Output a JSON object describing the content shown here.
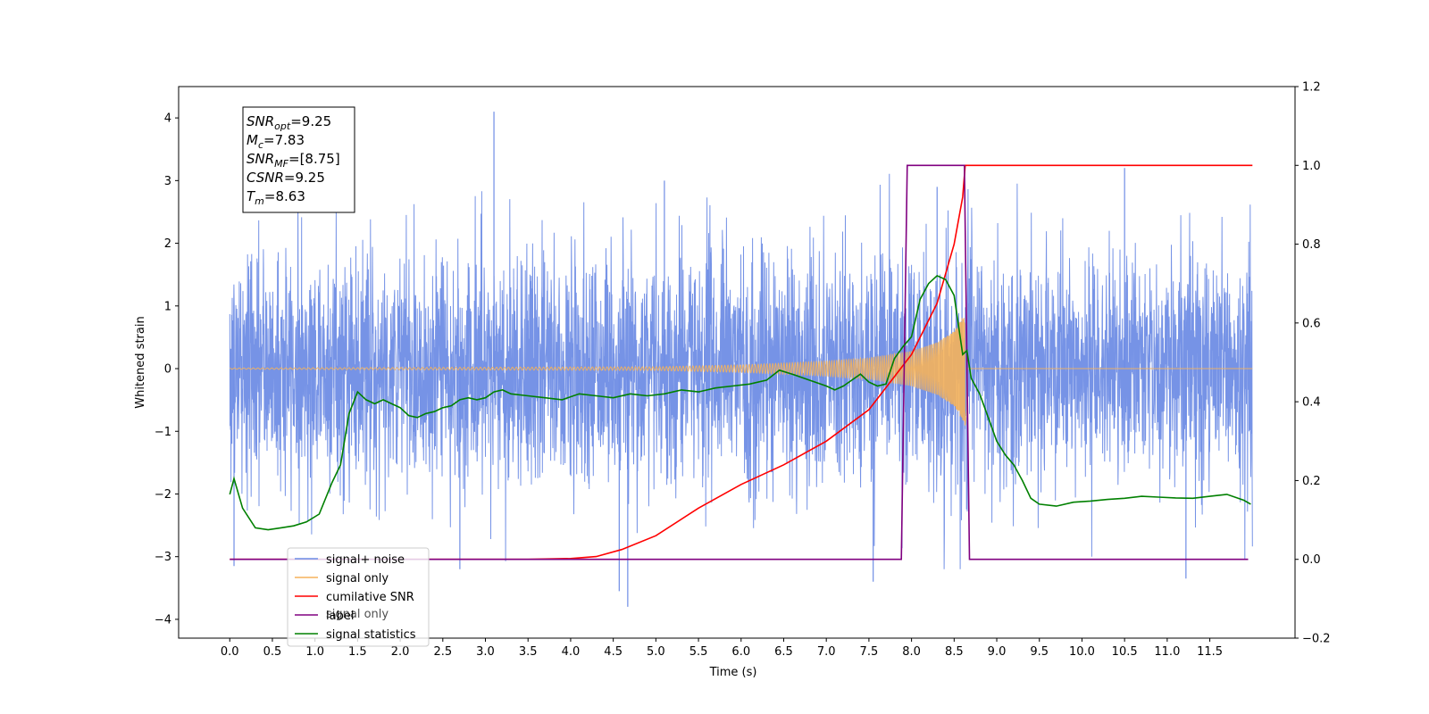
{
  "chart_data": {
    "type": "line",
    "title": "",
    "xlabel": "Time (s)",
    "ylabel": "Whitened strain",
    "xlim": [
      -0.6,
      12.5
    ],
    "ylim": [
      -4.3,
      4.5
    ],
    "y2lim": [
      -0.2,
      1.2
    ],
    "x_ticks": [
      "0.0",
      "0.5",
      "1.0",
      "1.5",
      "2.0",
      "2.5",
      "3.0",
      "3.5",
      "4.0",
      "4.5",
      "5.0",
      "5.5",
      "6.0",
      "6.5",
      "7.0",
      "7.5",
      "8.0",
      "8.5",
      "9.0",
      "9.5",
      "10.0",
      "10.5",
      "11.0",
      "11.5"
    ],
    "y_ticks": [
      "4",
      "3",
      "2",
      "1",
      "0",
      "−1",
      "−2",
      "−3",
      "−4"
    ],
    "y2_ticks": [
      "1.2",
      "1.0",
      "0.8",
      "0.6",
      "0.4",
      "0.2",
      "0.0",
      "−0.2"
    ],
    "info_box": [
      {
        "name": "SNR",
        "sub": "opt",
        "value": "=9.25"
      },
      {
        "name": "M",
        "sub": "c",
        "value": "=7.83"
      },
      {
        "name": "SNR",
        "sub": "MF",
        "value": "=[8.75]"
      },
      {
        "name": "CSNR",
        "sub": "",
        "value": "=9.25"
      },
      {
        "name": "T",
        "sub": "m",
        "value": "=8.63"
      }
    ],
    "legend": {
      "placement": "lower-left",
      "entries": [
        "signal+ noise",
        "signal only",
        "cumilative SNR",
        "label",
        "signal statistics"
      ],
      "ghost_text": "signal only"
    },
    "series": [
      {
        "name": "signal+ noise",
        "axis": "left",
        "color": "#6f8de5",
        "kind": "noise",
        "x_range": [
          0,
          12
        ],
        "amplitude": 1.3,
        "peak_max": 4.1,
        "peak_min": -3.8
      },
      {
        "name": "signal only",
        "axis": "left",
        "color": "#f5b25b",
        "kind": "chirp",
        "x_range": [
          0,
          12
        ],
        "merger_time": 8.63,
        "envelope": [
          [
            0,
            0.01
          ],
          [
            5.0,
            0.03
          ],
          [
            6.0,
            0.06
          ],
          [
            7.0,
            0.12
          ],
          [
            7.5,
            0.17
          ],
          [
            8.0,
            0.28
          ],
          [
            8.3,
            0.42
          ],
          [
            8.5,
            0.6
          ],
          [
            8.63,
            0.9
          ],
          [
            8.7,
            0.02
          ],
          [
            12,
            0.01
          ]
        ]
      },
      {
        "name": "cumilative SNR",
        "axis": "right",
        "color": "#ff0000",
        "x": [
          0,
          3.5,
          4.0,
          4.3,
          4.6,
          5.0,
          5.5,
          6.0,
          6.5,
          7.0,
          7.5,
          8.0,
          8.3,
          8.5,
          8.6,
          8.63,
          12.0
        ],
        "y": [
          0,
          0,
          0.002,
          0.007,
          0.025,
          0.06,
          0.13,
          0.19,
          0.24,
          0.3,
          0.38,
          0.52,
          0.65,
          0.8,
          0.92,
          1.0,
          1.0
        ]
      },
      {
        "name": "label",
        "axis": "right",
        "color": "#800080",
        "x": [
          0,
          7.88,
          7.95,
          8.62,
          8.68,
          11.95
        ],
        "y": [
          0,
          0,
          1,
          1,
          0,
          0
        ]
      },
      {
        "name": "signal statistics",
        "axis": "right",
        "color": "#008000",
        "x": [
          0,
          0.05,
          0.15,
          0.3,
          0.45,
          0.6,
          0.75,
          0.9,
          1.05,
          1.2,
          1.3,
          1.4,
          1.5,
          1.6,
          1.7,
          1.8,
          1.9,
          2.0,
          2.1,
          2.2,
          2.3,
          2.4,
          2.5,
          2.6,
          2.7,
          2.8,
          2.9,
          3.0,
          3.1,
          3.2,
          3.3,
          3.5,
          3.7,
          3.9,
          4.1,
          4.3,
          4.5,
          4.7,
          4.9,
          5.1,
          5.3,
          5.5,
          5.7,
          5.9,
          6.1,
          6.3,
          6.45,
          6.6,
          6.8,
          7.0,
          7.1,
          7.2,
          7.3,
          7.4,
          7.5,
          7.6,
          7.7,
          7.8,
          7.9,
          8.0,
          8.1,
          8.2,
          8.3,
          8.4,
          8.5,
          8.6,
          8.65,
          8.7,
          8.8,
          8.9,
          9.0,
          9.1,
          9.2,
          9.3,
          9.4,
          9.5,
          9.7,
          9.9,
          10.1,
          10.3,
          10.5,
          10.7,
          10.9,
          11.1,
          11.3,
          11.5,
          11.7,
          11.9,
          11.98
        ],
        "y": [
          0.165,
          0.205,
          0.13,
          0.08,
          0.075,
          0.08,
          0.085,
          0.095,
          0.115,
          0.195,
          0.24,
          0.37,
          0.425,
          0.405,
          0.395,
          0.405,
          0.395,
          0.385,
          0.365,
          0.36,
          0.37,
          0.375,
          0.385,
          0.39,
          0.405,
          0.41,
          0.405,
          0.41,
          0.425,
          0.43,
          0.42,
          0.415,
          0.41,
          0.405,
          0.42,
          0.415,
          0.41,
          0.42,
          0.415,
          0.42,
          0.43,
          0.425,
          0.435,
          0.44,
          0.445,
          0.455,
          0.48,
          0.47,
          0.455,
          0.44,
          0.43,
          0.44,
          0.455,
          0.47,
          0.45,
          0.44,
          0.445,
          0.51,
          0.54,
          0.565,
          0.66,
          0.7,
          0.72,
          0.71,
          0.67,
          0.52,
          0.53,
          0.46,
          0.42,
          0.36,
          0.3,
          0.265,
          0.24,
          0.2,
          0.155,
          0.14,
          0.135,
          0.145,
          0.148,
          0.152,
          0.155,
          0.16,
          0.158,
          0.156,
          0.155,
          0.16,
          0.165,
          0.15,
          0.14
        ]
      }
    ]
  }
}
